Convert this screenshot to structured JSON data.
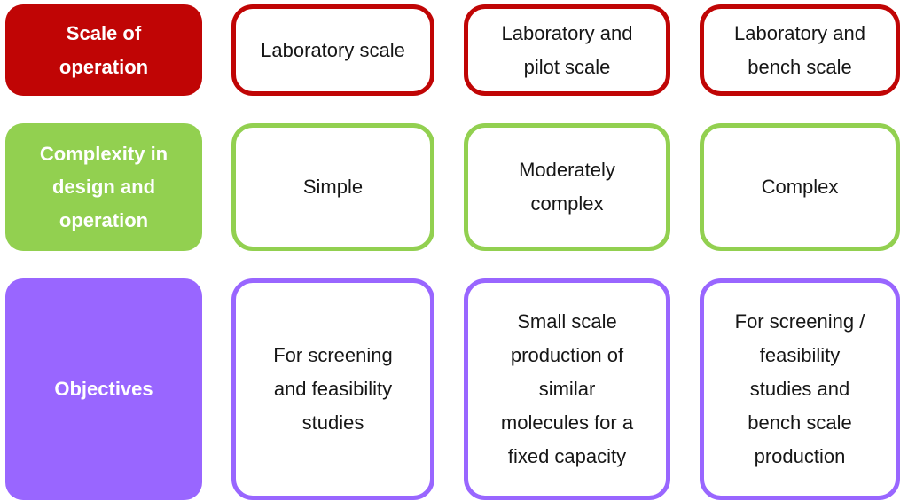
{
  "colors": {
    "red": "#c00505",
    "green": "#92d050",
    "purple": "#9966ff",
    "cell_text": "#161616",
    "label_text": "#ffffff",
    "background": "#ffffff"
  },
  "rows": [
    {
      "label": "Scale of\noperation",
      "color": "#c00505",
      "cells": [
        "Laboratory scale",
        "Laboratory and\npilot scale",
        "Laboratory and\nbench scale"
      ]
    },
    {
      "label": "Complexity in\ndesign and\noperation",
      "color": "#92d050",
      "cells": [
        "Simple",
        "Moderately\ncomplex",
        "Complex"
      ]
    },
    {
      "label": "Objectives",
      "color": "#9966ff",
      "cells": [
        "For screening\nand feasibility\nstudies",
        "Small scale\nproduction of\nsimilar\nmolecules for a\nfixed capacity",
        "For screening /\nfeasibility\nstudies and\nbench scale\nproduction"
      ]
    }
  ]
}
